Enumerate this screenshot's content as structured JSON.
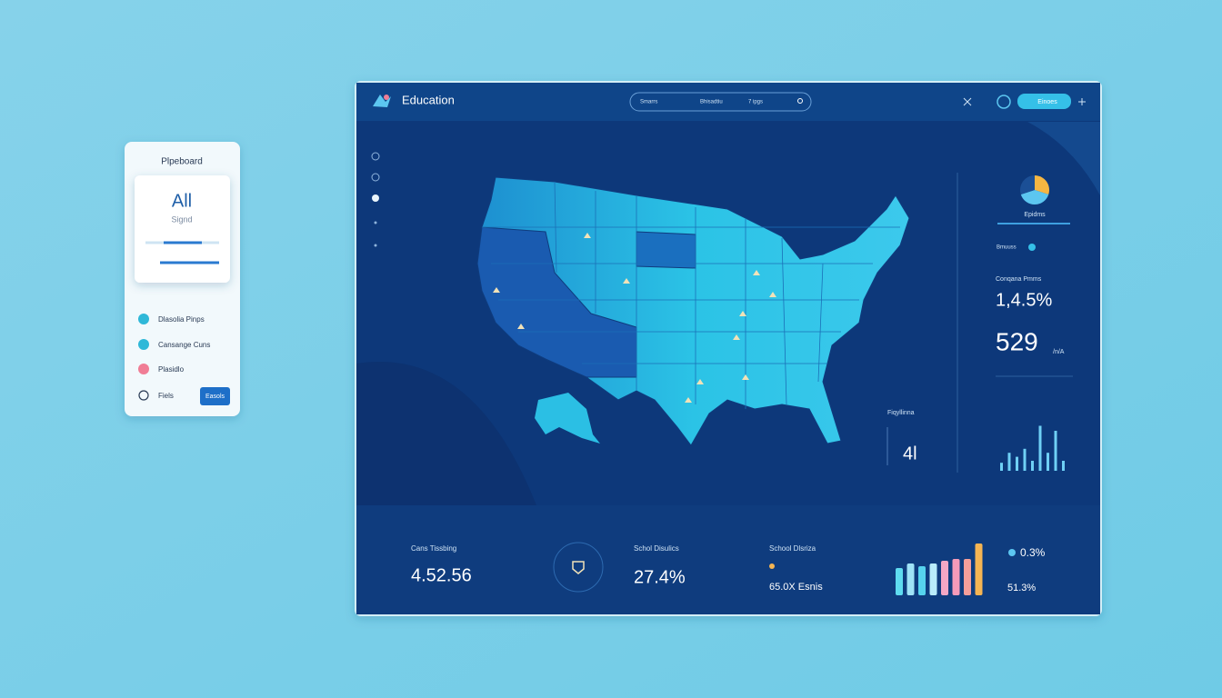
{
  "sidebar_card": {
    "title": "Plpeboard",
    "big": "All",
    "sub": "Signd",
    "menu": [
      "Dlasolia Pinps",
      "Cansange Cuns",
      "Plasidlo",
      "Fiels"
    ],
    "button": "Easols"
  },
  "header": {
    "brand": "Education",
    "search": [
      "Smarrs",
      "Bhisadtiu",
      "7 ipgs"
    ],
    "button": "Einoes"
  },
  "right_panel": {
    "pie": {
      "values": [
        30,
        40,
        30
      ],
      "colors": [
        "#f5b642",
        "#5cc6f0",
        "#1b4f96"
      ]
    },
    "pie_label": "Epidms",
    "legend": "Bmuuss",
    "stat_label": "Conqana Pmms",
    "stat1": "1,4.5%",
    "stat2": "529",
    "stat2_unit": "/n/A",
    "bars_label": "Fiqyllinna",
    "bars_value": "4l",
    "bars": {
      "values": [
        8,
        18,
        14,
        22,
        10,
        45,
        18,
        40,
        10
      ],
      "color": "#6fd0f5"
    }
  },
  "footer": {
    "stats": [
      {
        "label": "Cans Tissbing",
        "value": "4.52.56"
      },
      {
        "label": "Schol Disulics",
        "value": "27.4%"
      },
      {
        "label": "School Dlsriza",
        "value": "65.0X Esnis"
      }
    ],
    "side_stat1": "0.3%",
    "side_stat2": "51.3%",
    "bars": {
      "values": [
        30,
        35,
        32,
        35,
        38,
        40,
        40,
        57
      ],
      "colors": [
        "#5fdcf0",
        "#9fe3f7",
        "#56d3ee",
        "#b9ecfb",
        "#f3a7c5",
        "#f49ab9",
        "#f59f9a",
        "#f5b553"
      ]
    }
  }
}
